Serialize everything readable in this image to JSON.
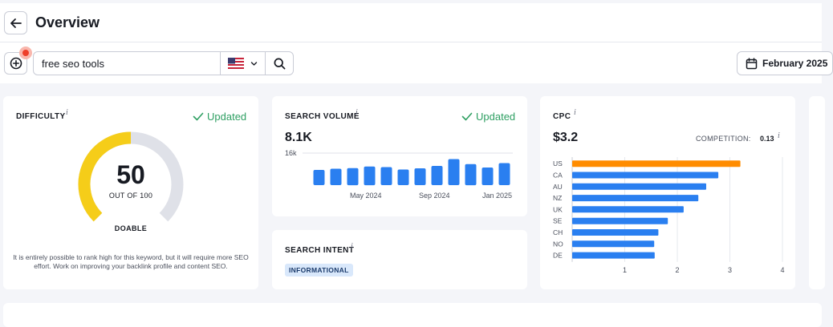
{
  "header": {
    "title": "Overview"
  },
  "search": {
    "query": "free seo tools",
    "country_flag": "US"
  },
  "date_picker": {
    "label": "February 2025"
  },
  "difficulty": {
    "title": "DIFFICULTY",
    "info": "i",
    "updated": "Updated",
    "value": "50",
    "value_fraction": 0.5,
    "out_of": "OUT OF 100",
    "level": "DOABLE",
    "description": "It is entirely possible to rank high for this keyword, but it will require more SEO effort. Work on improving your backlink profile and content SEO.",
    "colors": {
      "fill": "#f5cd19",
      "track": "#dfe1e8"
    }
  },
  "search_volume": {
    "title": "SEARCH VOLUME",
    "info": "i",
    "updated": "Updated",
    "value": "8.1K",
    "axis_max_label": "16k",
    "x_labels": [
      "May 2024",
      "Sep 2024",
      "Jan 2025"
    ]
  },
  "search_intent": {
    "title": "SEARCH INTENT",
    "info": "i",
    "badge": "INFORMATIONAL"
  },
  "cpc": {
    "title": "CPC",
    "info": "i",
    "value": "$3.2",
    "competition_label": "COMPETITION:",
    "competition_value": "0.13",
    "competition_info": "i"
  },
  "chart_data": [
    {
      "type": "bar",
      "ylabel": "",
      "ylim": [
        0,
        16000
      ],
      "tick_labels": [
        "16k"
      ],
      "x_tick_labels": [
        "May 2024",
        "Sep 2024",
        "Jan 2025"
      ],
      "values": [
        7600,
        8200,
        8500,
        9300,
        9000,
        7800,
        8400,
        9600,
        13000,
        10500,
        8800,
        11000
      ],
      "color": "#2a7ff0"
    },
    {
      "type": "bar",
      "orientation": "horizontal",
      "categories": [
        "US",
        "CA",
        "AU",
        "NZ",
        "UK",
        "SE",
        "CH",
        "NO",
        "DE"
      ],
      "values": [
        3.2,
        2.78,
        2.55,
        2.4,
        2.12,
        1.82,
        1.64,
        1.56,
        1.57
      ],
      "xlim": [
        0,
        4
      ],
      "x_ticks": [
        1,
        2,
        3,
        4
      ],
      "highlight_category": "US",
      "colors": {
        "highlight": "#ff8c00",
        "default": "#2a7ff0",
        "grid": "#e6e8ee"
      }
    }
  ]
}
